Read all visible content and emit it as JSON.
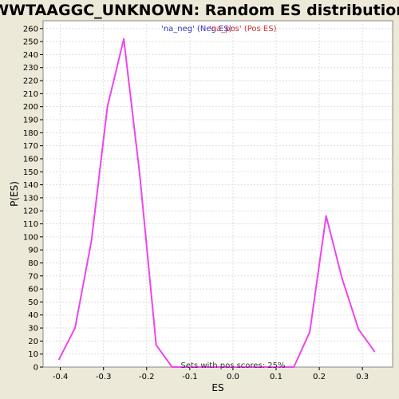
{
  "chart_data": {
    "type": "line",
    "title": "WWTAAGGC_UNKNOWN: Random ES distribution",
    "xlabel": "ES",
    "ylabel": "P(ES)",
    "xlim": [
      -0.44,
      0.37
    ],
    "ylim": [
      0,
      266
    ],
    "x_ticks": [
      -0.4,
      -0.3,
      -0.2,
      -0.1,
      0.0,
      0.1,
      0.2,
      0.3
    ],
    "x_tick_labels": [
      "-0.4",
      "-0.3",
      "-0.2",
      "-0.1",
      "0.0",
      "0.1",
      "0.2",
      "0.3"
    ],
    "y_ticks": [
      0,
      10,
      20,
      30,
      40,
      50,
      60,
      70,
      80,
      90,
      100,
      110,
      120,
      130,
      140,
      150,
      160,
      170,
      180,
      190,
      200,
      210,
      220,
      230,
      240,
      250,
      260
    ],
    "grid": true,
    "legend": {
      "placement": "top-center",
      "entries": [
        {
          "label": "'na_neg' (Neg ES)",
          "color": "#3333cc"
        },
        {
          "label": "'na_pos' (Pos ES)",
          "color": "#cc3333"
        }
      ]
    },
    "annotation": "Sets with pos scores: 25%",
    "series": [
      {
        "color": "#ee44ee",
        "x": [
          -0.403,
          -0.366,
          -0.328,
          -0.291,
          -0.253,
          -0.216,
          -0.178,
          -0.141,
          0.141,
          0.178,
          0.216,
          0.253,
          0.291,
          0.328
        ],
        "y": [
          6,
          30,
          97,
          200,
          252,
          148,
          17,
          0,
          0,
          27,
          116,
          68,
          29,
          12
        ]
      }
    ]
  },
  "colors": {
    "background": "#ece9d8",
    "plot_background": "#ffffff",
    "grid": "#dddddd",
    "line": "#ee44ee"
  }
}
